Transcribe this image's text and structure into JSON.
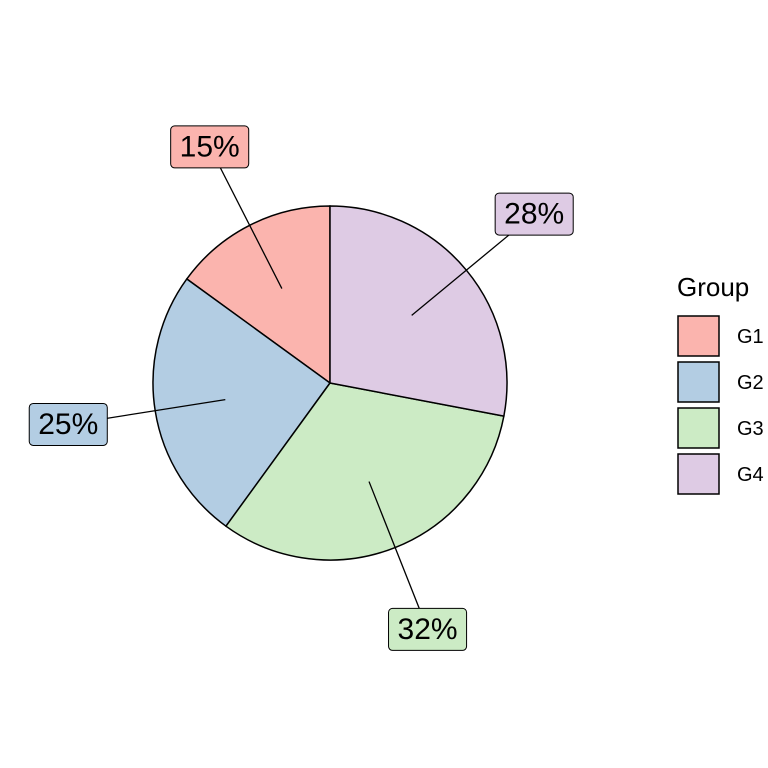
{
  "chart_data": {
    "type": "pie",
    "categories": [
      "G1",
      "G2",
      "G3",
      "G4"
    ],
    "values": [
      15,
      25,
      32,
      28
    ],
    "value_labels": [
      "15%",
      "25%",
      "32%",
      "28%"
    ],
    "colors": [
      "#FBB4AE",
      "#B3CDE3",
      "#CCEBC5",
      "#DECBE4"
    ],
    "legend_title": "Group",
    "legend_position": "right"
  }
}
